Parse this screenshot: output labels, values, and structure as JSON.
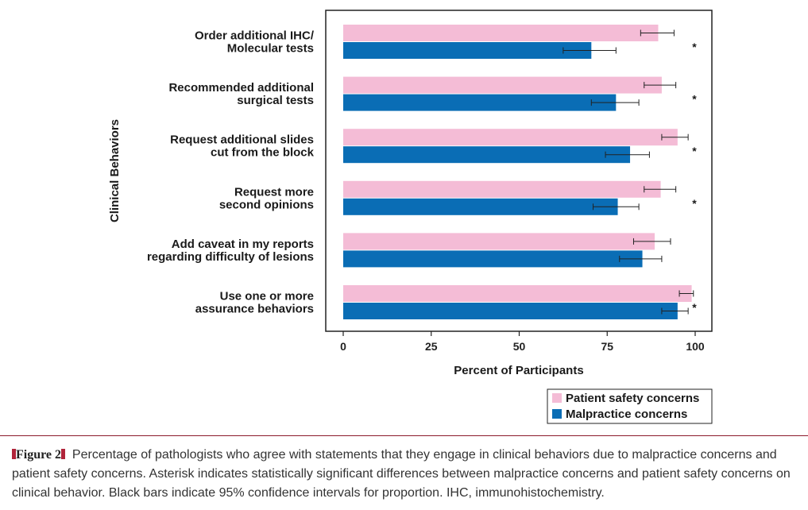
{
  "chart_data": {
    "type": "bar",
    "orientation": "horizontal",
    "categories": [
      [
        "Order additional IHC/",
        "Molecular tests"
      ],
      [
        "Recommended additional",
        "surgical tests"
      ],
      [
        "Request additional slides",
        "cut from the block"
      ],
      [
        "Request more",
        "second opinions"
      ],
      [
        "Add caveat in my reports",
        "regarding difficulty of lesions"
      ],
      [
        "Use one or more",
        "assurance behaviors"
      ]
    ],
    "series": [
      {
        "name": "Patient safety concerns",
        "color": "#f4bcd6",
        "values": [
          89.5,
          90.5,
          95,
          90.2,
          88.5,
          99
        ],
        "ci_low": [
          84.5,
          85.5,
          90.5,
          85.5,
          82.5,
          95.5
        ],
        "ci_high": [
          94,
          94.5,
          98,
          94.5,
          93,
          99.5
        ]
      },
      {
        "name": "Malpractice concerns",
        "color": "#0a6db5",
        "values": [
          70.5,
          77.5,
          81.5,
          78,
          85,
          95
        ],
        "ci_low": [
          62.5,
          70.5,
          74.5,
          71,
          78.5,
          90.5
        ],
        "ci_high": [
          77.5,
          84,
          87,
          84,
          90.5,
          98
        ]
      }
    ],
    "significant": [
      true,
      true,
      true,
      true,
      false,
      true
    ],
    "significance_marker": "*",
    "xlabel": "Percent of Participants",
    "ylabel": "Clinical Behaviors",
    "xlim": [
      0,
      100
    ],
    "xticks": [
      0,
      25,
      50,
      75,
      100
    ],
    "grid": false,
    "legend_position": "bottom-right"
  },
  "caption": {
    "label": "Figure 2",
    "text": "Percentage of pathologists who agree with statements that they engage in clinical behaviors due to malpractice concerns and patient safety concerns. Asterisk indicates statistically significant differences between malpractice concerns and patient safety concerns on clinical behavior. Black bars indicate 95% confidence intervals for proportion. IHC, immunohistochemistry."
  }
}
